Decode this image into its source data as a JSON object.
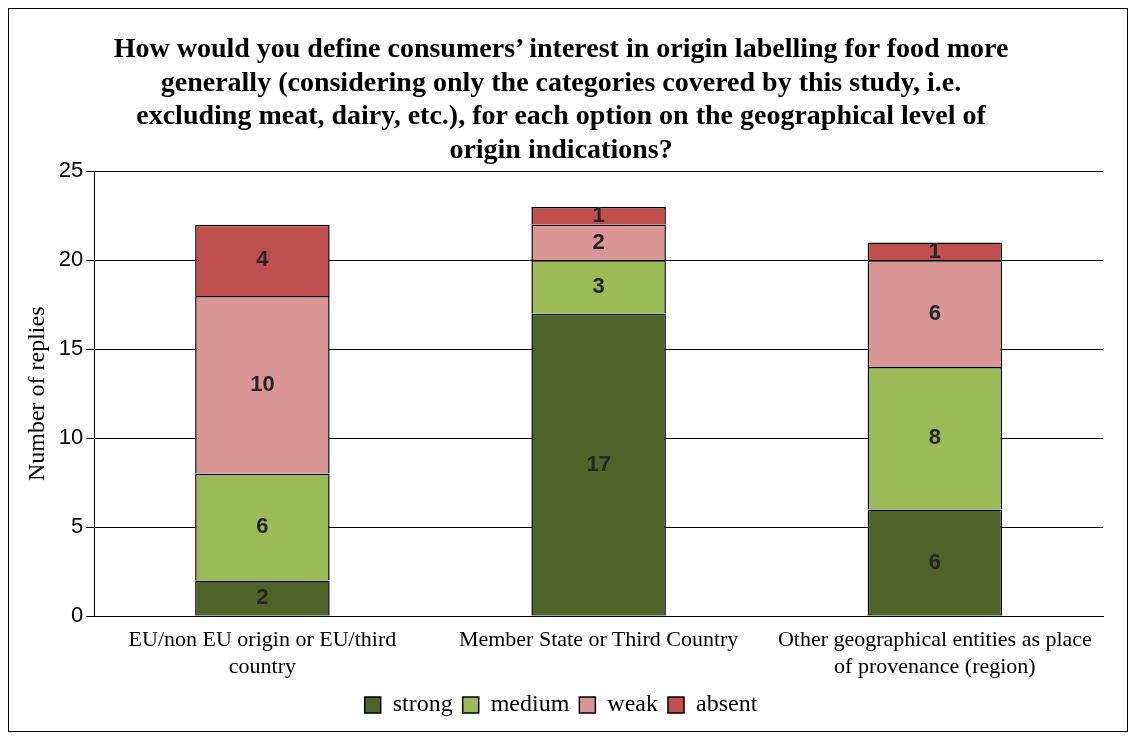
{
  "chart_data": {
    "type": "bar",
    "title": "How would you define consumers’ interest in origin labelling for food more generally (considering only the categories covered by this study, i.e. excluding meat, dairy, etc.), for each option on the geographical level of origin indications?",
    "ylabel": "Number of replies",
    "categories": [
      "EU/non EU origin or EU/third country",
      "Member State or Third Country",
      "Other geographical entities as place of provenance (region)"
    ],
    "series": [
      {
        "name": "strong",
        "color": "#4f6228",
        "values": [
          2,
          17,
          6
        ]
      },
      {
        "name": "medium",
        "color": "#9bbb59",
        "values": [
          6,
          3,
          8
        ]
      },
      {
        "name": "weak",
        "color": "#d99694",
        "values": [
          10,
          2,
          6
        ]
      },
      {
        "name": "absent",
        "color": "#c0504d",
        "values": [
          4,
          1,
          1
        ]
      }
    ],
    "stacked": true,
    "ylim": [
      0,
      25
    ],
    "yticks": [
      0,
      5,
      10,
      15,
      20,
      25
    ],
    "grid": "y",
    "legend": "bottom",
    "data_labels": true
  }
}
